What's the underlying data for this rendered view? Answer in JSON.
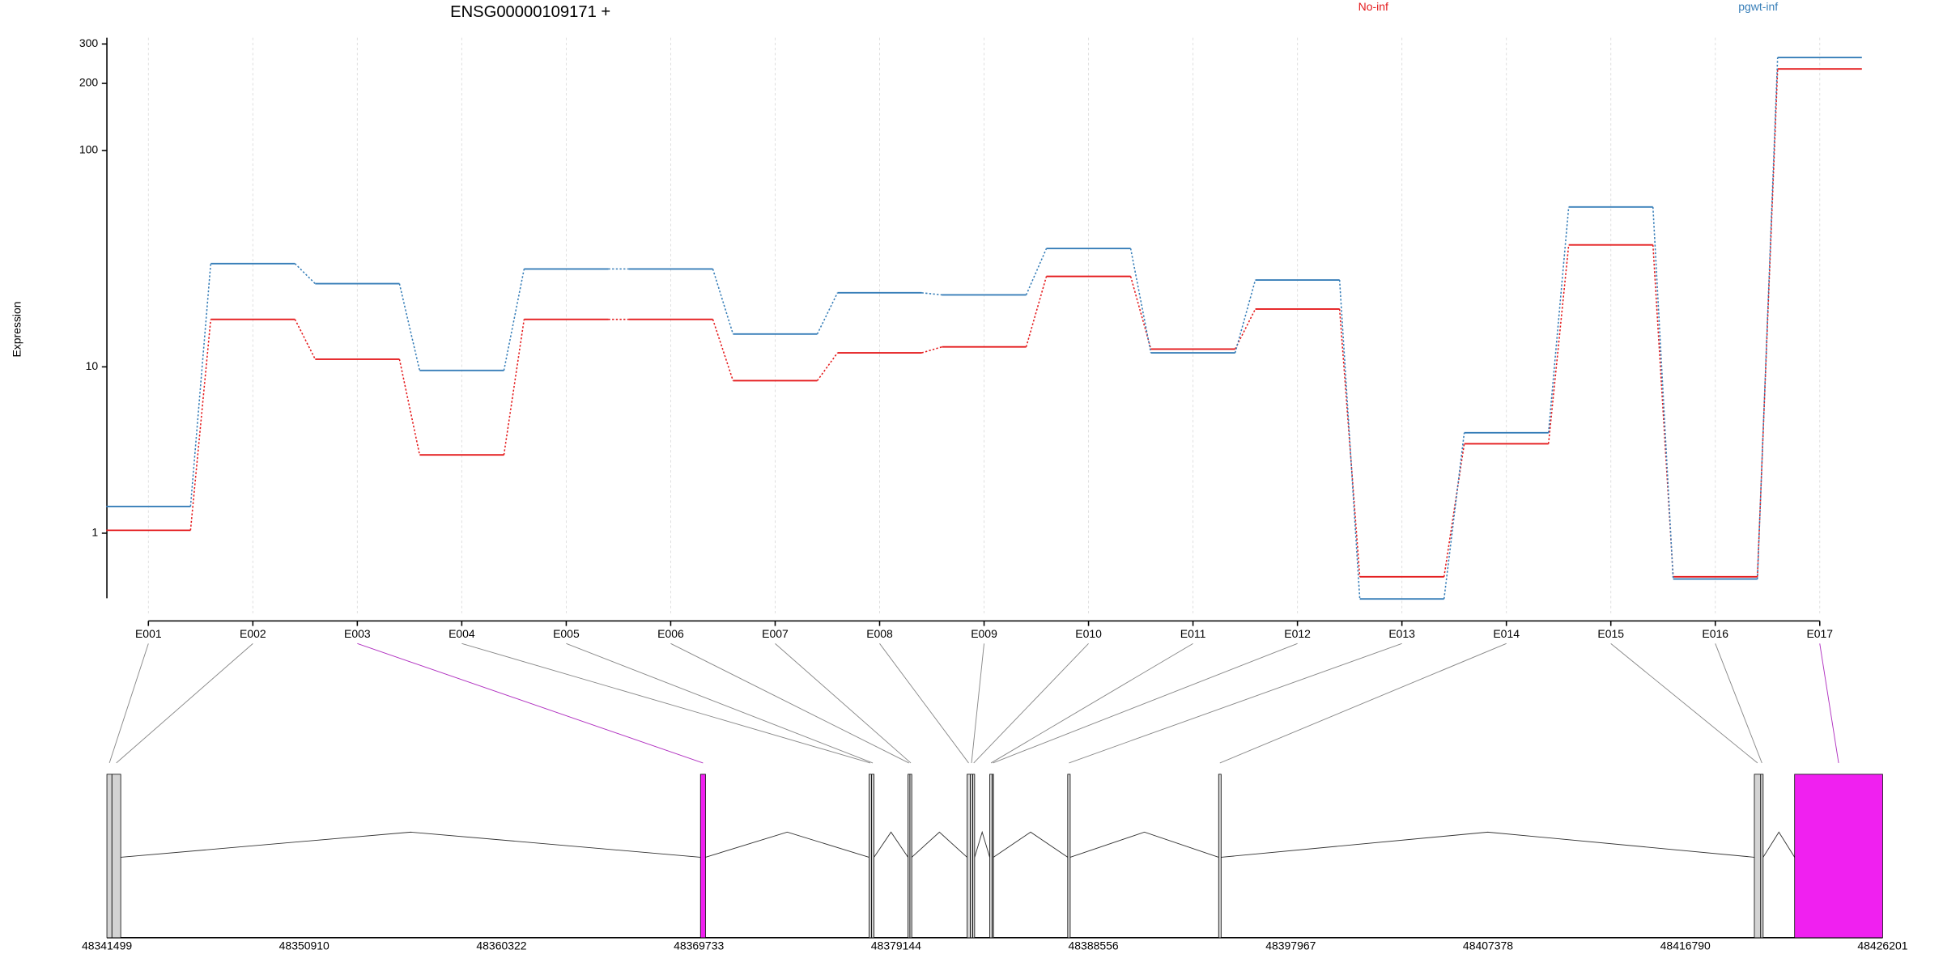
{
  "chart_data": {
    "type": "line",
    "title": "ENSG00000109171 +",
    "y_label": "Expression",
    "categories": [
      "E001",
      "E002",
      "E003",
      "E004",
      "E005",
      "E006",
      "E007",
      "E008",
      "E009",
      "E010",
      "E011",
      "E012",
      "E013",
      "E014",
      "E015",
      "E016",
      "E017"
    ],
    "series": [
      {
        "name": "No-inf",
        "color": "#e41a1c",
        "values": [
          1.06,
          16.9,
          10.9,
          3.46,
          16.9,
          16.9,
          8.55,
          11.7,
          12.5,
          26.8,
          12.2,
          18.9,
          0.28,
          4.0,
          37.4,
          0.28,
          232
        ]
      },
      {
        "name": "pgwt-inf",
        "color": "#377eb8",
        "values": [
          1.63,
          30.7,
          24.8,
          9.6,
          29,
          29,
          14.4,
          22.5,
          22,
          36,
          11.7,
          25.8,
          0.02,
          4.6,
          55.6,
          0.25,
          261
        ]
      }
    ],
    "yscale": "log",
    "log_pseudocount": 1,
    "ylim": [
      0,
      320
    ],
    "yticks": [
      1,
      10,
      100,
      200,
      300
    ],
    "grid": true,
    "exons": {
      "start": [
        48341499,
        48341740,
        48369813,
        48377851,
        48377972,
        48379711,
        48379802,
        48382530,
        48382681,
        48382801,
        48383610,
        48383731,
        48387329,
        48394528,
        48420082,
        48420383,
        48422002
      ],
      "end": [
        48341739,
        48342159,
        48370053,
        48377971,
        48378091,
        48379801,
        48379891,
        48382680,
        48382800,
        48382890,
        48383730,
        48383790,
        48387449,
        48394647,
        48420382,
        48420502,
        48426201
      ],
      "highlight": [
        false,
        false,
        true,
        false,
        false,
        false,
        false,
        false,
        false,
        false,
        false,
        false,
        false,
        false,
        false,
        false,
        true
      ]
    },
    "exon_color": "#d3d3d3",
    "highlight_color": "#f020f0",
    "genome_xlim": [
      48341499,
      48426201
    ],
    "genome_xticks": [
      48341499,
      48350910,
      48360322,
      48369733,
      48379144,
      48388556,
      48397967,
      48407378,
      48416790,
      48426201
    ]
  }
}
